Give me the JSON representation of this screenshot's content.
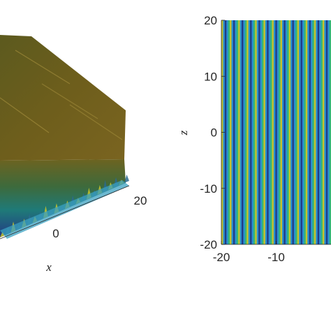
{
  "chart_data": [
    {
      "type": "area",
      "view": "3d-surface",
      "x_ticks": [
        "0",
        "20"
      ],
      "xlabel": "x",
      "colors": [
        "#1f3c88",
        "#2a6b8f",
        "#1f9a8a",
        "#4a7a3a",
        "#7a6a1a",
        "#c8c32a"
      ],
      "grid": false
    },
    {
      "type": "heatmap",
      "xlim": [
        -20,
        20
      ],
      "ylim": [
        -20,
        20
      ],
      "x_ticks": [
        "-20",
        "-10"
      ],
      "y_ticks": [
        "20",
        "10",
        "0",
        "-10",
        "-20"
      ],
      "ylabel": "z",
      "stripe_count": 26,
      "colors": [
        "#2a8fd0",
        "#1f3c88",
        "#35b779",
        "#c8c32a"
      ],
      "grid": false
    }
  ]
}
